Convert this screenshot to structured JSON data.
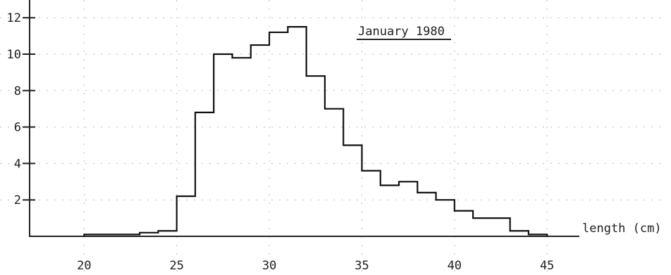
{
  "chart_data": {
    "type": "histogram",
    "title": "January 1980",
    "xlabel": "length (cm)",
    "ylabel": "",
    "xlim": [
      15,
      48
    ],
    "ylim": [
      0,
      12.5
    ],
    "grid": true,
    "x_ticks": [
      "20",
      "25",
      "30",
      "35",
      "40",
      "45"
    ],
    "y_ticks": [
      "2",
      "4",
      "6",
      "8",
      "10",
      "12"
    ],
    "bins": [
      {
        "from": 20,
        "to": 23,
        "value": 0.1
      },
      {
        "from": 23,
        "to": 24,
        "value": 0.2
      },
      {
        "from": 24,
        "to": 25,
        "value": 0.3
      },
      {
        "from": 25,
        "to": 26,
        "value": 2.2
      },
      {
        "from": 26,
        "to": 27,
        "value": 6.8
      },
      {
        "from": 27,
        "to": 28,
        "value": 10.0
      },
      {
        "from": 28,
        "to": 29,
        "value": 9.8
      },
      {
        "from": 29,
        "to": 30,
        "value": 10.5
      },
      {
        "from": 30,
        "to": 31,
        "value": 11.2
      },
      {
        "from": 31,
        "to": 32,
        "value": 11.5
      },
      {
        "from": 32,
        "to": 33,
        "value": 8.8
      },
      {
        "from": 33,
        "to": 34,
        "value": 7.0
      },
      {
        "from": 34,
        "to": 35,
        "value": 5.0
      },
      {
        "from": 35,
        "to": 36,
        "value": 3.6
      },
      {
        "from": 36,
        "to": 37,
        "value": 2.8
      },
      {
        "from": 37,
        "to": 38,
        "value": 3.0
      },
      {
        "from": 38,
        "to": 39,
        "value": 2.4
      },
      {
        "from": 39,
        "to": 40,
        "value": 2.0
      },
      {
        "from": 40,
        "to": 41,
        "value": 1.4
      },
      {
        "from": 41,
        "to": 43,
        "value": 1.0
      },
      {
        "from": 43,
        "to": 44,
        "value": 0.3
      },
      {
        "from": 44,
        "to": 45,
        "value": 0.1
      }
    ]
  }
}
